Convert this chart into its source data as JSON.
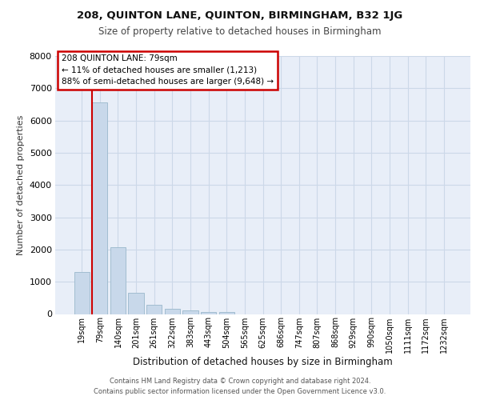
{
  "title1": "208, QUINTON LANE, QUINTON, BIRMINGHAM, B32 1JG",
  "title2": "Size of property relative to detached houses in Birmingham",
  "xlabel": "Distribution of detached houses by size in Birmingham",
  "ylabel": "Number of detached properties",
  "categories": [
    "19sqm",
    "79sqm",
    "140sqm",
    "201sqm",
    "261sqm",
    "322sqm",
    "383sqm",
    "443sqm",
    "504sqm",
    "565sqm",
    "625sqm",
    "686sqm",
    "747sqm",
    "807sqm",
    "868sqm",
    "929sqm",
    "990sqm",
    "1050sqm",
    "1111sqm",
    "1172sqm",
    "1232sqm"
  ],
  "values": [
    1300,
    6550,
    2080,
    650,
    290,
    160,
    100,
    65,
    65,
    0,
    0,
    0,
    0,
    0,
    0,
    0,
    0,
    0,
    0,
    0,
    0
  ],
  "bar_color": "#c8d8ea",
  "bar_edge_color": "#9ab8cc",
  "annotation_vline_bar_index": 1,
  "annotation_text_line1": "208 QUINTON LANE: 79sqm",
  "annotation_text_line2": "← 11% of detached houses are smaller (1,213)",
  "annotation_text_line3": "88% of semi-detached houses are larger (9,648) →",
  "annotation_box_facecolor": "#ffffff",
  "annotation_box_edgecolor": "#cc0000",
  "vline_color": "#cc0000",
  "grid_color": "#ccd8e8",
  "background_color": "#e8eef8",
  "ylim": [
    0,
    8000
  ],
  "yticks": [
    0,
    1000,
    2000,
    3000,
    4000,
    5000,
    6000,
    7000,
    8000
  ],
  "footer_line1": "Contains HM Land Registry data © Crown copyright and database right 2024.",
  "footer_line2": "Contains public sector information licensed under the Open Government Licence v3.0."
}
